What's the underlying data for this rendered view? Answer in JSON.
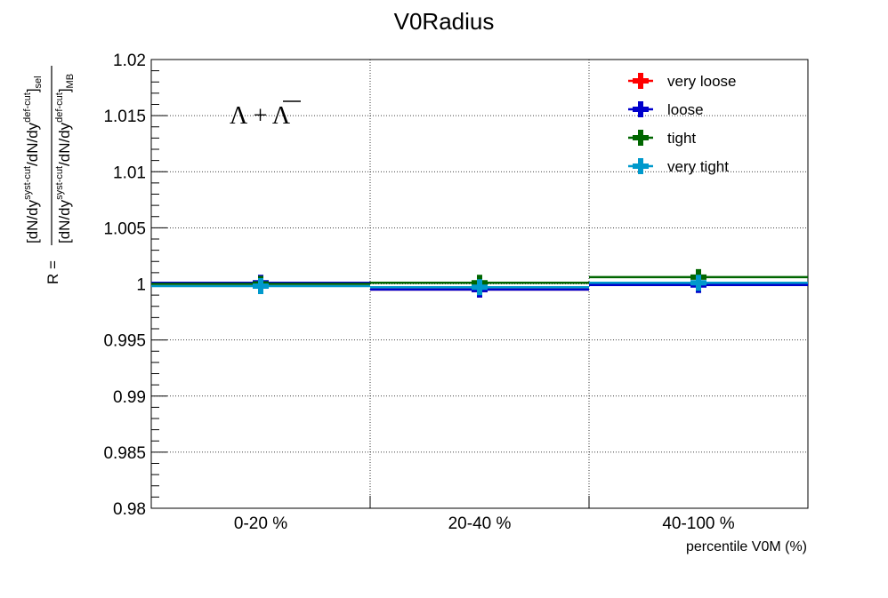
{
  "chart_data": {
    "type": "line",
    "title": "V0Radius",
    "xlabel": "percentile V0M (%)",
    "ylabel": {
      "prefix": "R =",
      "numerator": "[dN/dy",
      "numerator_sup": "syst-cut",
      "numerator_mid": "/dN/dy",
      "numerator_sup2": "def-cut",
      "numerator_end": "]",
      "numerator_sub": "sel",
      "denominator": "[dN/dy",
      "denominator_sup": "syst-cut",
      "denominator_mid": "/dN/dy",
      "denominator_sup2": "def-cut",
      "denominator_end": "]",
      "denominator_sub": "MB"
    },
    "annotation": "Λ + Λ",
    "categories": [
      "0-20 %",
      "20-40 %",
      "40-100 %"
    ],
    "ylim": [
      0.98,
      1.02
    ],
    "yticks": [
      0.98,
      0.985,
      0.99,
      0.995,
      1,
      1.005,
      1.01,
      1.015,
      1.02
    ],
    "ytick_labels": [
      "0.98",
      "0.985",
      "0.99",
      "0.995",
      "1",
      "1.005",
      "1.01",
      "1.015",
      "1.02"
    ],
    "grid": true,
    "legend_position": "top-right",
    "series": [
      {
        "name": "very loose",
        "color": "#ff0000",
        "values": [
          1.0,
          0.9995,
          1.0
        ],
        "errors": [
          0.0004,
          0.0006,
          0.0005
        ]
      },
      {
        "name": "loose",
        "color": "#0000cc",
        "values": [
          1.0001,
          0.9995,
          0.9999
        ],
        "errors": [
          0.0004,
          0.0005,
          0.0005
        ]
      },
      {
        "name": "tight",
        "color": "#006600",
        "values": [
          1.0,
          1.0001,
          1.0006
        ],
        "errors": [
          0.0005,
          0.0005,
          0.0006
        ]
      },
      {
        "name": "very tight",
        "color": "#0099cc",
        "values": [
          0.9998,
          0.9997,
          1.0001
        ],
        "errors": [
          0.0006,
          0.0006,
          0.0006
        ]
      }
    ]
  }
}
